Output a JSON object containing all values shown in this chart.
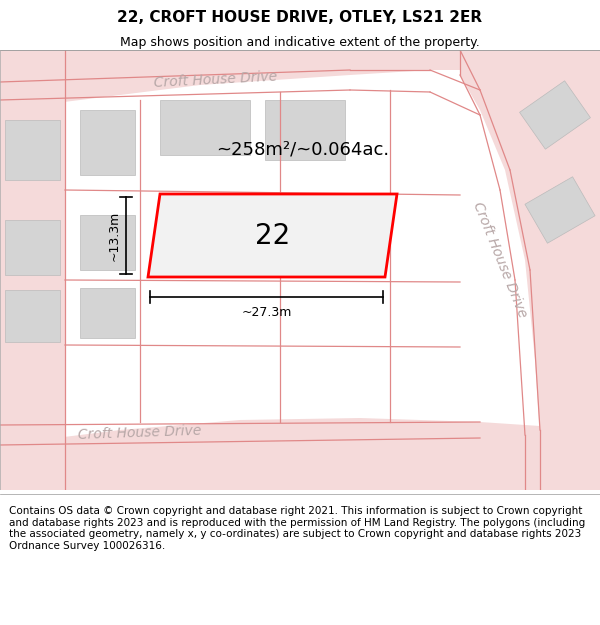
{
  "title_line1": "22, CROFT HOUSE DRIVE, OTLEY, LS21 2ER",
  "title_line2": "Map shows position and indicative extent of the property.",
  "footer_text": "Contains OS data © Crown copyright and database right 2021. This information is subject to Crown copyright and database rights 2023 and is reproduced with the permission of HM Land Registry. The polygons (including the associated geometry, namely x, y co-ordinates) are subject to Crown copyright and database rights 2023 Ordnance Survey 100026316.",
  "map_bg": "#efefef",
  "road_fill": "#f5dada",
  "road_line": "#e08888",
  "building_fill": "#d4d4d4",
  "building_edge": "#bbbbbb",
  "prop_fill": "#f2f2f2",
  "prop_edge": "#ff0000",
  "label_color": "#b8a8a8",
  "area_text": "~258m²/~0.064ac.",
  "number_text": "22",
  "width_label": "~27.3m",
  "height_label": "~13.3m",
  "title_fontsize": 11,
  "subtitle_fontsize": 9,
  "footer_fontsize": 7.5,
  "road_lw": 0.9,
  "label_fontsize": 10
}
